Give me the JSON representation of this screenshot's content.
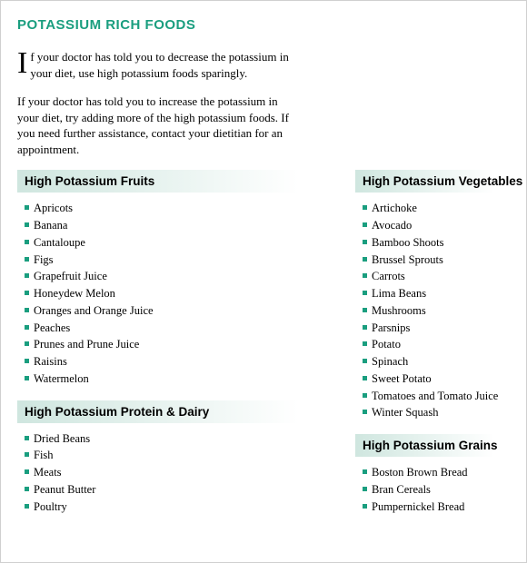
{
  "colors": {
    "accent": "#1a9e7f",
    "header_bg_start": "#cfe6df",
    "header_bg_end": "#ffffff",
    "bullet": "#1a9e7f",
    "text": "#000000"
  },
  "title": "POTASSIUM RICH FOODS",
  "intro_dropcap": "I",
  "intro_para1_rest": "f your doctor has told you to decrease the potassium in your diet, use high potassium foods sparingly.",
  "intro_para2": "If your doctor has told you to increase the potassium in your diet, try adding more of the high potassium foods. If you need further assistance, contact your dietitian for an appointment.",
  "sections": {
    "fruits": {
      "heading": "High Potassium Fruits",
      "items": [
        "Apricots",
        "Banana",
        "Cantaloupe",
        "Figs",
        "Grapefruit Juice",
        "Honeydew Melon",
        "Oranges and Orange Juice",
        "Peaches",
        "Prunes and Prune Juice",
        "Raisins",
        "Watermelon"
      ]
    },
    "vegetables": {
      "heading": "High Potassium Vegetables",
      "items": [
        "Artichoke",
        "Avocado",
        "Bamboo Shoots",
        "Brussel Sprouts",
        "Carrots",
        "Lima Beans",
        "Mushrooms",
        "Parsnips",
        "Potato",
        "Spinach",
        "Sweet Potato",
        "Tomatoes and Tomato Juice",
        "Winter Squash"
      ]
    },
    "protein": {
      "heading": "High Potassium Protein & Dairy",
      "items": [
        "Dried Beans",
        "Fish",
        "Meats",
        "Peanut Butter",
        "Poultry"
      ]
    },
    "grains": {
      "heading": "High Potassium Grains",
      "items": [
        "Boston Brown Bread",
        "Bran Cereals",
        "Pumpernickel Bread"
      ]
    }
  }
}
